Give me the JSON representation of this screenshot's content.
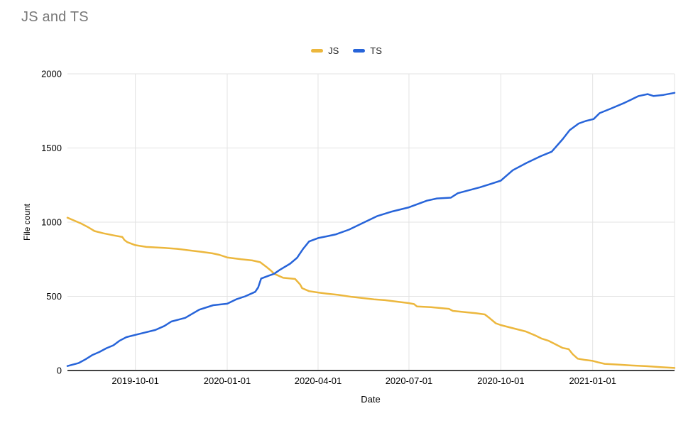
{
  "chart_data": {
    "type": "line",
    "title": "JS and TS",
    "xlabel": "Date",
    "ylabel": "File count",
    "ylim": [
      0,
      2000
    ],
    "y_ticks": [
      0,
      500,
      1000,
      1500,
      2000
    ],
    "x_ticks": [
      "2019-10-01",
      "2020-01-01",
      "2020-04-01",
      "2020-07-01",
      "2020-10-01",
      "2021-01-01"
    ],
    "x_range": [
      "2019-07-25",
      "2021-03-24"
    ],
    "grid": true,
    "legend_position": "top-center",
    "colors": {
      "grid": "#e3e3e3",
      "axis_line": "#424242",
      "title_text": "#777777",
      "tick_text": "#000000"
    },
    "series": [
      {
        "name": "JS",
        "color": "#ECB73D",
        "points": [
          [
            "2019-07-25",
            1030
          ],
          [
            "2019-08-01",
            1010
          ],
          [
            "2019-08-08",
            990
          ],
          [
            "2019-08-15",
            965
          ],
          [
            "2019-08-21",
            940
          ],
          [
            "2019-08-30",
            925
          ],
          [
            "2019-09-10",
            910
          ],
          [
            "2019-09-18",
            900
          ],
          [
            "2019-09-20",
            880
          ],
          [
            "2019-09-23",
            865
          ],
          [
            "2019-10-01",
            845
          ],
          [
            "2019-10-12",
            833
          ],
          [
            "2019-10-30",
            827
          ],
          [
            "2019-11-12",
            820
          ],
          [
            "2019-11-24",
            810
          ],
          [
            "2019-12-06",
            800
          ],
          [
            "2019-12-17",
            790
          ],
          [
            "2019-12-24",
            780
          ],
          [
            "2020-01-01",
            762
          ],
          [
            "2020-01-15",
            750
          ],
          [
            "2020-01-26",
            742
          ],
          [
            "2020-02-03",
            730
          ],
          [
            "2020-02-09",
            700
          ],
          [
            "2020-02-14",
            672
          ],
          [
            "2020-02-17",
            652
          ],
          [
            "2020-02-26",
            625
          ],
          [
            "2020-03-09",
            617
          ],
          [
            "2020-03-14",
            580
          ],
          [
            "2020-03-16",
            555
          ],
          [
            "2020-03-23",
            535
          ],
          [
            "2020-04-01",
            526
          ],
          [
            "2020-04-10",
            518
          ],
          [
            "2020-04-21",
            510
          ],
          [
            "2020-05-05",
            496
          ],
          [
            "2020-05-16",
            488
          ],
          [
            "2020-05-27",
            480
          ],
          [
            "2020-06-07",
            474
          ],
          [
            "2020-06-19",
            464
          ],
          [
            "2020-06-30",
            455
          ],
          [
            "2020-07-06",
            448
          ],
          [
            "2020-07-09",
            432
          ],
          [
            "2020-07-23",
            427
          ],
          [
            "2020-08-10",
            416
          ],
          [
            "2020-08-14",
            402
          ],
          [
            "2020-08-27",
            393
          ],
          [
            "2020-09-06",
            386
          ],
          [
            "2020-09-15",
            378
          ],
          [
            "2020-09-20",
            352
          ],
          [
            "2020-09-26",
            318
          ],
          [
            "2020-10-01",
            306
          ],
          [
            "2020-10-12",
            287
          ],
          [
            "2020-10-26",
            263
          ],
          [
            "2020-11-04",
            238
          ],
          [
            "2020-11-11",
            215
          ],
          [
            "2020-11-18",
            200
          ],
          [
            "2020-11-25",
            176
          ],
          [
            "2020-12-02",
            152
          ],
          [
            "2020-12-08",
            144
          ],
          [
            "2020-12-12",
            110
          ],
          [
            "2020-12-17",
            80
          ],
          [
            "2020-12-24",
            72
          ],
          [
            "2021-01-01",
            65
          ],
          [
            "2021-01-06",
            56
          ],
          [
            "2021-01-13",
            45
          ],
          [
            "2021-01-26",
            40
          ],
          [
            "2021-02-09",
            34
          ],
          [
            "2021-02-24",
            29
          ],
          [
            "2021-03-10",
            23
          ],
          [
            "2021-03-24",
            17
          ]
        ]
      },
      {
        "name": "TS",
        "color": "#2764D9",
        "points": [
          [
            "2019-07-25",
            30
          ],
          [
            "2019-08-05",
            50
          ],
          [
            "2019-08-12",
            75
          ],
          [
            "2019-08-19",
            105
          ],
          [
            "2019-08-26",
            125
          ],
          [
            "2019-09-02",
            150
          ],
          [
            "2019-09-09",
            170
          ],
          [
            "2019-09-15",
            200
          ],
          [
            "2019-09-22",
            225
          ],
          [
            "2019-10-01",
            240
          ],
          [
            "2019-10-10",
            255
          ],
          [
            "2019-10-21",
            273
          ],
          [
            "2019-10-30",
            300
          ],
          [
            "2019-11-06",
            330
          ],
          [
            "2019-11-20",
            355
          ],
          [
            "2019-12-04",
            410
          ],
          [
            "2019-12-18",
            440
          ],
          [
            "2020-01-01",
            450
          ],
          [
            "2020-01-10",
            480
          ],
          [
            "2020-01-19",
            500
          ],
          [
            "2020-01-29",
            530
          ],
          [
            "2020-02-01",
            560
          ],
          [
            "2020-02-04",
            620
          ],
          [
            "2020-02-12",
            640
          ],
          [
            "2020-02-17",
            652
          ],
          [
            "2020-02-23",
            680
          ],
          [
            "2020-03-04",
            720
          ],
          [
            "2020-03-11",
            760
          ],
          [
            "2020-03-17",
            820
          ],
          [
            "2020-03-23",
            870
          ],
          [
            "2020-04-01",
            893
          ],
          [
            "2020-04-10",
            905
          ],
          [
            "2020-04-19",
            918
          ],
          [
            "2020-05-02",
            950
          ],
          [
            "2020-05-16",
            995
          ],
          [
            "2020-05-30",
            1040
          ],
          [
            "2020-06-13",
            1070
          ],
          [
            "2020-07-01",
            1100
          ],
          [
            "2020-07-19",
            1145
          ],
          [
            "2020-07-29",
            1160
          ],
          [
            "2020-08-12",
            1165
          ],
          [
            "2020-08-19",
            1195
          ],
          [
            "2020-08-30",
            1215
          ],
          [
            "2020-09-10",
            1235
          ],
          [
            "2020-09-21",
            1258
          ],
          [
            "2020-10-01",
            1280
          ],
          [
            "2020-10-13",
            1350
          ],
          [
            "2020-10-27",
            1400
          ],
          [
            "2020-11-10",
            1445
          ],
          [
            "2020-11-21",
            1475
          ],
          [
            "2020-12-02",
            1560
          ],
          [
            "2020-12-09",
            1620
          ],
          [
            "2020-12-18",
            1665
          ],
          [
            "2020-12-25",
            1682
          ],
          [
            "2021-01-02",
            1695
          ],
          [
            "2021-01-08",
            1735
          ],
          [
            "2021-01-19",
            1765
          ],
          [
            "2021-02-02",
            1805
          ],
          [
            "2021-02-16",
            1850
          ],
          [
            "2021-02-25",
            1863
          ],
          [
            "2021-03-03",
            1850
          ],
          [
            "2021-03-13",
            1858
          ],
          [
            "2021-03-24",
            1872
          ]
        ]
      }
    ]
  }
}
